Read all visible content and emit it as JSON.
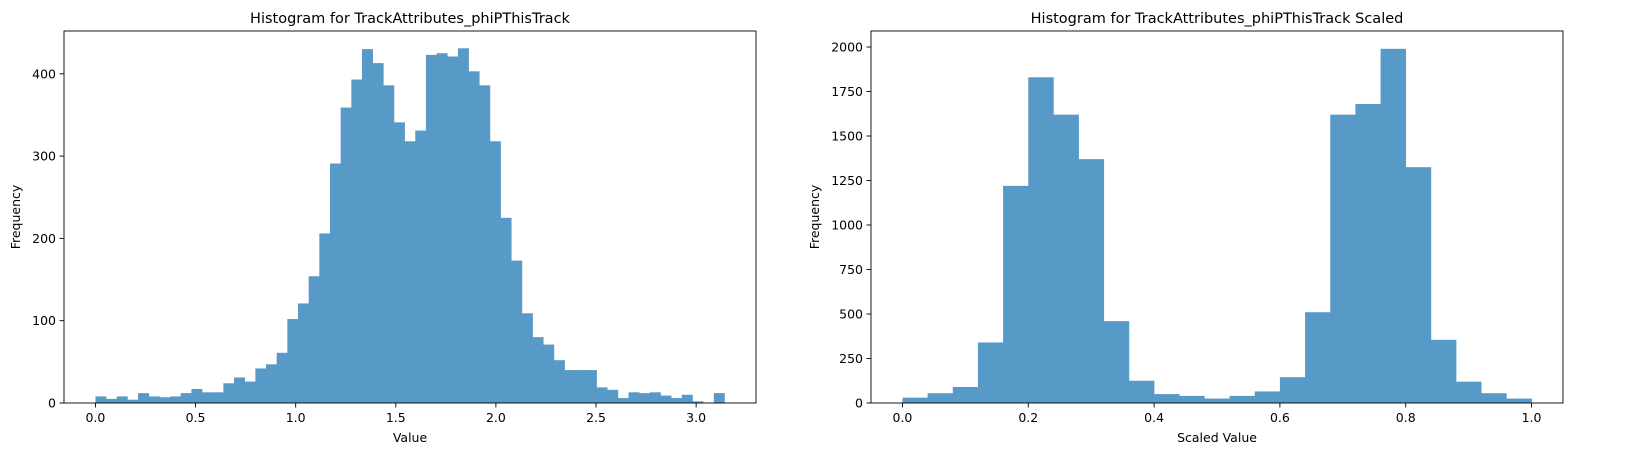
{
  "chart_data": [
    {
      "type": "bar",
      "title": "Histogram for TrackAttributes_phiPThisTrack",
      "xlabel": "Value",
      "ylabel": "Frequency",
      "xlim": [
        -0.157,
        3.299
      ],
      "ylim": [
        0,
        452
      ],
      "xticks": [
        0.0,
        0.5,
        1.0,
        1.5,
        2.0,
        2.5,
        3.0
      ],
      "xtick_labels": [
        "0.0",
        "0.5",
        "1.0",
        "1.5",
        "2.0",
        "2.5",
        "3.0"
      ],
      "yticks": [
        0,
        100,
        200,
        300,
        400
      ],
      "ytick_labels": [
        "0",
        "100",
        "200",
        "300",
        "400"
      ],
      "grid": false,
      "color": "#5799c7",
      "bin_edges_range": [
        0.0,
        3.1416
      ],
      "values": [
        8,
        5,
        8,
        4,
        12,
        8,
        7,
        8,
        12,
        17,
        13,
        13,
        24,
        31,
        26,
        42,
        47,
        61,
        102,
        121,
        154,
        206,
        291,
        359,
        393,
        430,
        413,
        386,
        341,
        318,
        331,
        423,
        425,
        421,
        431,
        403,
        386,
        318,
        225,
        173,
        109,
        80,
        71,
        52,
        40,
        40,
        40,
        19,
        16,
        6,
        13,
        12,
        13,
        9,
        6,
        10,
        2,
        0,
        12
      ]
    },
    {
      "type": "bar",
      "title": "Histogram for TrackAttributes_phiPThisTrack Scaled",
      "xlabel": "Scaled Value",
      "ylabel": "Frequency",
      "xlim": [
        -0.05,
        1.05
      ],
      "ylim": [
        0,
        2090
      ],
      "xticks": [
        0.0,
        0.2,
        0.4,
        0.6,
        0.8,
        1.0
      ],
      "xtick_labels": [
        "0.0",
        "0.2",
        "0.4",
        "0.6",
        "0.8",
        "1.0"
      ],
      "yticks": [
        0,
        250,
        500,
        750,
        1000,
        1250,
        1500,
        1750,
        2000
      ],
      "ytick_labels": [
        "0",
        "250",
        "500",
        "750",
        "1000",
        "1250",
        "1500",
        "1750",
        "2000"
      ],
      "grid": false,
      "color": "#5799c7",
      "bin_edges_range": [
        0.0,
        1.0
      ],
      "values": [
        30,
        55,
        90,
        340,
        1220,
        1830,
        1620,
        1370,
        460,
        125,
        50,
        40,
        25,
        40,
        65,
        145,
        510,
        1620,
        1680,
        1990,
        1325,
        355,
        120,
        55,
        25
      ]
    }
  ]
}
